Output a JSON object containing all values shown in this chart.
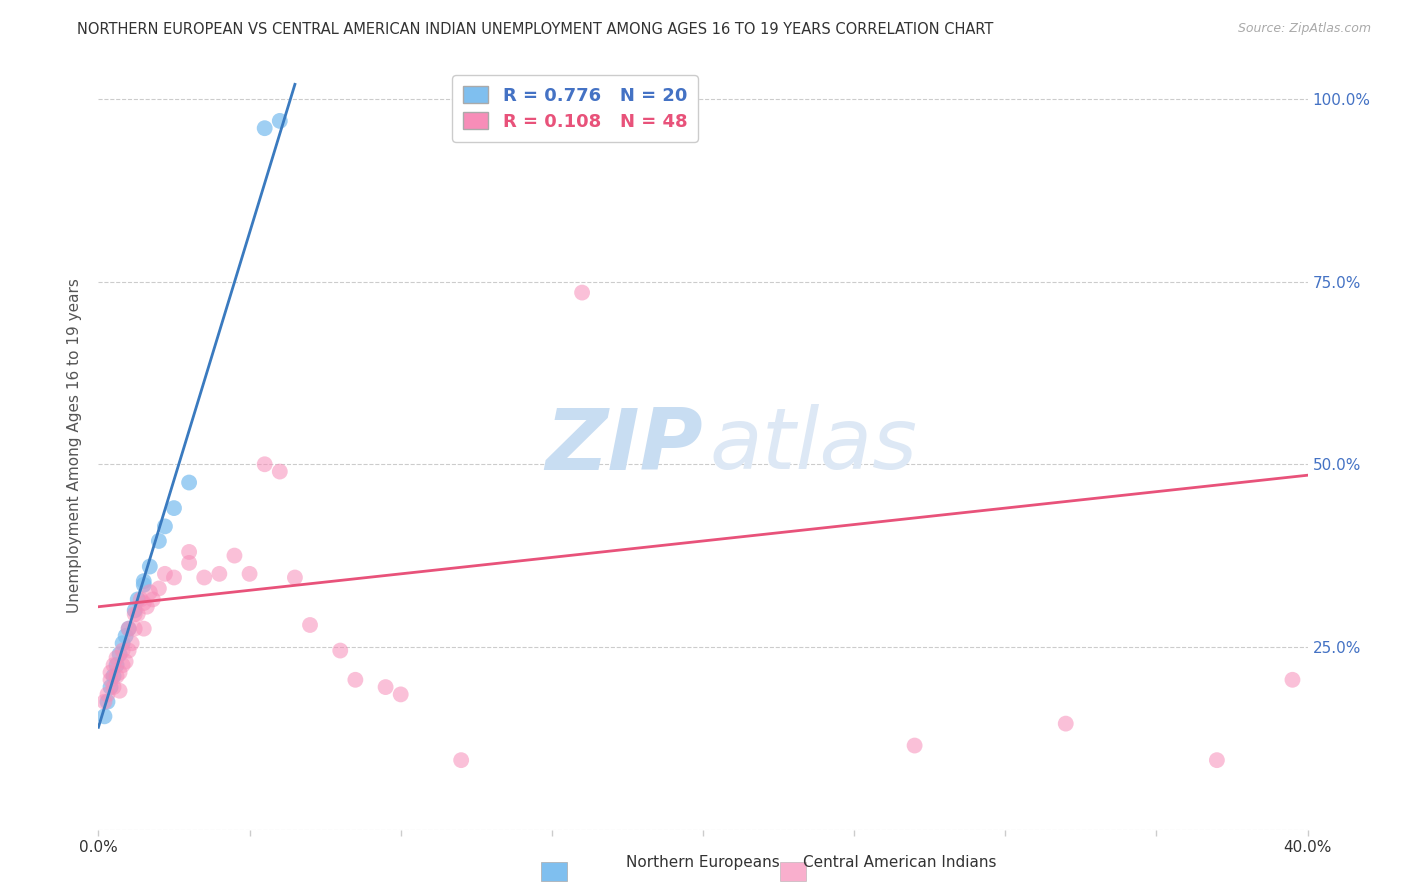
{
  "title": "NORTHERN EUROPEAN VS CENTRAL AMERICAN INDIAN UNEMPLOYMENT AMONG AGES 16 TO 19 YEARS CORRELATION CHART",
  "source": "Source: ZipAtlas.com",
  "ylabel": "Unemployment Among Ages 16 to 19 years",
  "xlim": [
    0.0,
    0.4
  ],
  "ylim": [
    0.0,
    1.05
  ],
  "ytick_values": [
    0.0,
    0.25,
    0.5,
    0.75,
    1.0
  ],
  "xtick_values": [
    0.0,
    0.05,
    0.1,
    0.15,
    0.2,
    0.25,
    0.3,
    0.35,
    0.4
  ],
  "blue_R": 0.776,
  "blue_N": 20,
  "pink_R": 0.108,
  "pink_N": 48,
  "blue_color": "#7fbfef",
  "pink_color": "#f78db8",
  "blue_line_color": "#3a7abf",
  "pink_line_color": "#e8527a",
  "watermark_zip": "ZIP",
  "watermark_atlas": "atlas",
  "blue_x": [
    0.002,
    0.003,
    0.004,
    0.005,
    0.006,
    0.007,
    0.008,
    0.009,
    0.01,
    0.012,
    0.013,
    0.015,
    0.015,
    0.017,
    0.02,
    0.022,
    0.025,
    0.03,
    0.055,
    0.06
  ],
  "blue_y": [
    0.155,
    0.175,
    0.195,
    0.21,
    0.225,
    0.24,
    0.255,
    0.265,
    0.275,
    0.3,
    0.315,
    0.335,
    0.34,
    0.36,
    0.395,
    0.415,
    0.44,
    0.475,
    0.96,
    0.97
  ],
  "pink_x": [
    0.002,
    0.003,
    0.004,
    0.004,
    0.005,
    0.005,
    0.006,
    0.006,
    0.007,
    0.007,
    0.008,
    0.008,
    0.009,
    0.01,
    0.01,
    0.011,
    0.012,
    0.012,
    0.013,
    0.014,
    0.015,
    0.015,
    0.016,
    0.017,
    0.018,
    0.02,
    0.022,
    0.025,
    0.03,
    0.03,
    0.035,
    0.04,
    0.045,
    0.05,
    0.055,
    0.06,
    0.065,
    0.07,
    0.08,
    0.085,
    0.095,
    0.1,
    0.12,
    0.16,
    0.27,
    0.32,
    0.37,
    0.395
  ],
  "pink_y": [
    0.175,
    0.185,
    0.205,
    0.215,
    0.195,
    0.225,
    0.21,
    0.235,
    0.19,
    0.215,
    0.225,
    0.245,
    0.23,
    0.245,
    0.275,
    0.255,
    0.275,
    0.295,
    0.295,
    0.315,
    0.275,
    0.31,
    0.305,
    0.325,
    0.315,
    0.33,
    0.35,
    0.345,
    0.365,
    0.38,
    0.345,
    0.35,
    0.375,
    0.35,
    0.5,
    0.49,
    0.345,
    0.28,
    0.245,
    0.205,
    0.195,
    0.185,
    0.095,
    0.735,
    0.115,
    0.145,
    0.095,
    0.205
  ],
  "blue_trendline_x": [
    0.0,
    0.065
  ],
  "blue_trendline_y": [
    0.14,
    1.02
  ],
  "pink_trendline_x": [
    0.0,
    0.4
  ],
  "pink_trendline_y": [
    0.305,
    0.485
  ],
  "right_yaxis_color": "#4472c4",
  "grid_color": "#cccccc",
  "legend_label_blue": "Northern Europeans",
  "legend_label_pink": "Central American Indians"
}
